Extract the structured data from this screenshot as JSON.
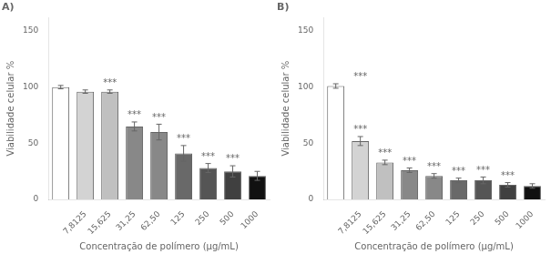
{
  "chart_data": [
    {
      "type": "bar",
      "title": "A)",
      "categories": [
        null,
        "7,8125",
        "15,625",
        "31,25",
        "62,50",
        "125",
        "250",
        "500",
        "1000"
      ],
      "values": [
        100,
        96,
        96,
        65,
        60,
        41,
        28,
        25,
        21
      ],
      "errors": [
        1.5,
        1.5,
        1.5,
        4,
        7,
        7,
        4,
        5,
        4
      ],
      "colors": [
        "#ffffff",
        "#d3d3d3",
        "#c0c0c0",
        "#888888",
        "#888888",
        "#696969",
        "#555555",
        "#404040",
        "#111111"
      ],
      "ylabel": "Viabilidade celular %",
      "xlabel": "Concentração de polímero (µg/mL)",
      "ylim": [
        0,
        162
      ],
      "yticks": [
        0,
        50,
        100,
        150
      ],
      "grid": false,
      "annotations": [
        {
          "text": "***",
          "x": "15,625",
          "y": 99.5
        },
        {
          "text": "***",
          "x": "31,25",
          "y": 71
        },
        {
          "text": "***",
          "x": "62,50",
          "y": 69
        },
        {
          "text": "***",
          "x": "125",
          "y": 50
        },
        {
          "text": "***",
          "x": "250",
          "y": 34
        },
        {
          "text": "***",
          "x": "500",
          "y": 32
        }
      ]
    },
    {
      "type": "bar",
      "title": "B)",
      "categories": [
        null,
        "7,8125",
        "15,625",
        "31,25",
        "62,50",
        "125",
        "250",
        "500",
        "1000"
      ],
      "values": [
        101,
        52,
        33,
        26,
        21,
        17,
        17,
        13,
        12
      ],
      "errors": [
        2,
        4,
        2,
        2,
        2,
        2,
        3,
        2,
        2
      ],
      "colors": [
        "#ffffff",
        "#d3d3d3",
        "#c0c0c0",
        "#888888",
        "#888888",
        "#696969",
        "#555555",
        "#404040",
        "#111111"
      ],
      "ylabel": "Viabilidade celular %",
      "xlabel": "Concentração de polímero (µg/mL)",
      "ylim": [
        0,
        162
      ],
      "yticks": [
        0,
        50,
        100,
        150
      ],
      "grid": false,
      "annotations": [
        {
          "text": "***",
          "x": "7,8125",
          "y": 105
        },
        {
          "text": "***",
          "x": "7,8125",
          "y": 58
        },
        {
          "text": "***",
          "x": "15,625",
          "y": 37
        },
        {
          "text": "***",
          "x": "31,25",
          "y": 30
        },
        {
          "text": "***",
          "x": "62,50",
          "y": 25
        },
        {
          "text": "***",
          "x": "125",
          "y": 21
        },
        {
          "text": "***",
          "x": "250",
          "y": 22
        },
        {
          "text": "***",
          "x": "500",
          "y": 17
        }
      ]
    }
  ]
}
